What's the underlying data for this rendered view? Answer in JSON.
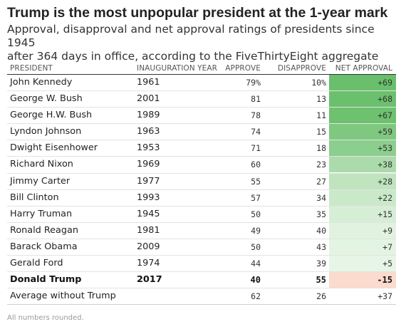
{
  "title": "Trump is the most unpopular president at the 1-year mark",
  "subtitle_line1": "Approval, disapproval and net approval ratings of presidents since 1945",
  "subtitle_line2": "after 364 days in office, according to the FiveThirtyEight aggregate",
  "footnote": "All numbers rounded.",
  "colors": {
    "positive_max": "#69bf6b",
    "positive_min": "#eef8ec",
    "negative": "#fadbcd"
  },
  "chart_data": {
    "type": "table",
    "columns": [
      "PRESIDENT",
      "INAUGURATION YEAR",
      "APPROVE",
      "DISAPPROVE",
      "NET APPROVAL"
    ],
    "rows": [
      {
        "president": "John Kennedy",
        "year": "1961",
        "approve": "79%",
        "disapprove": "10%",
        "net": "+69",
        "net_value": 69
      },
      {
        "president": "George W. Bush",
        "year": "2001",
        "approve": "81",
        "disapprove": "13",
        "net": "+68",
        "net_value": 68
      },
      {
        "president": "George H.W. Bush",
        "year": "1989",
        "approve": "78",
        "disapprove": "11",
        "net": "+67",
        "net_value": 67
      },
      {
        "president": "Lyndon Johnson",
        "year": "1963",
        "approve": "74",
        "disapprove": "15",
        "net": "+59",
        "net_value": 59
      },
      {
        "president": "Dwight Eisenhower",
        "year": "1953",
        "approve": "71",
        "disapprove": "18",
        "net": "+53",
        "net_value": 53
      },
      {
        "president": "Richard Nixon",
        "year": "1969",
        "approve": "60",
        "disapprove": "23",
        "net": "+38",
        "net_value": 38
      },
      {
        "president": "Jimmy Carter",
        "year": "1977",
        "approve": "55",
        "disapprove": "27",
        "net": "+28",
        "net_value": 28
      },
      {
        "president": "Bill Clinton",
        "year": "1993",
        "approve": "57",
        "disapprove": "34",
        "net": "+22",
        "net_value": 22
      },
      {
        "president": "Harry Truman",
        "year": "1945",
        "approve": "50",
        "disapprove": "35",
        "net": "+15",
        "net_value": 15
      },
      {
        "president": "Ronald Reagan",
        "year": "1981",
        "approve": "49",
        "disapprove": "40",
        "net": "+9",
        "net_value": 9
      },
      {
        "president": "Barack Obama",
        "year": "2009",
        "approve": "50",
        "disapprove": "43",
        "net": "+7",
        "net_value": 7
      },
      {
        "president": "Gerald Ford",
        "year": "1974",
        "approve": "44",
        "disapprove": "39",
        "net": "+5",
        "net_value": 5
      },
      {
        "president": "Donald Trump",
        "year": "2017",
        "approve": "40",
        "disapprove": "55",
        "net": "-15",
        "net_value": -15,
        "highlight": true
      }
    ],
    "average": {
      "label": "Average without Trump",
      "approve": "62",
      "disapprove": "26",
      "net": "+37"
    }
  }
}
